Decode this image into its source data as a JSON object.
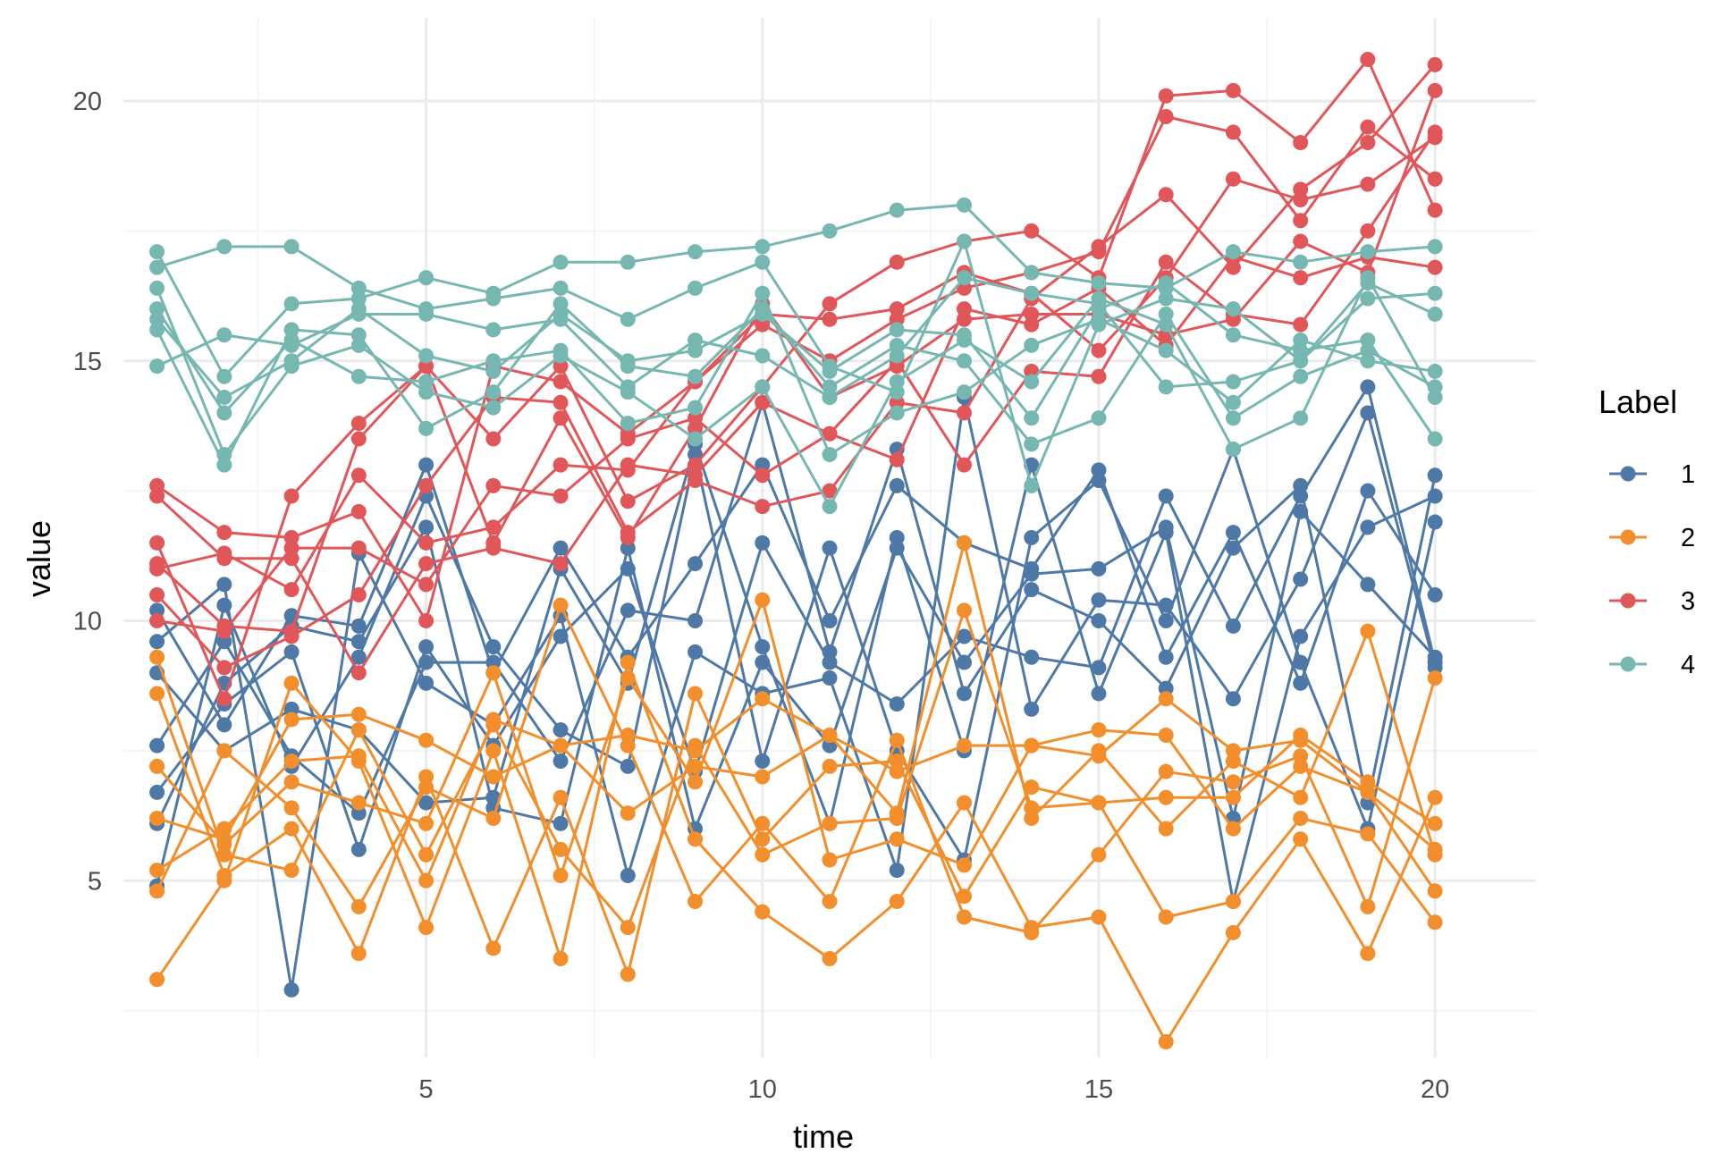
{
  "chart_data": {
    "type": "line",
    "title": "",
    "xlabel": "time",
    "ylabel": "value",
    "xlim": [
      0.5,
      21.5
    ],
    "ylim": [
      1.6,
      21.6
    ],
    "x_ticks": [
      5,
      10,
      15,
      20
    ],
    "y_ticks": [
      5,
      10,
      15,
      20
    ],
    "x_tick_labels": [
      "5",
      "10",
      "15",
      "20"
    ],
    "y_tick_labels": [
      "5",
      "10",
      "15",
      "20"
    ],
    "grid": true,
    "markers": true,
    "legend": {
      "title": "Label",
      "placement": "right",
      "entries": [
        {
          "label": "1",
          "color": "#4e79a7"
        },
        {
          "label": "2",
          "color": "#f28e2b"
        },
        {
          "label": "3",
          "color": "#e15759"
        },
        {
          "label": "4",
          "color": "#76b7b2"
        }
      ]
    },
    "x": [
      1,
      2,
      3,
      4,
      5,
      6,
      7,
      8,
      9,
      10,
      11,
      12,
      13,
      14,
      15,
      16,
      17,
      18,
      19,
      20
    ],
    "series": [
      {
        "name": "1",
        "label": "1",
        "color": "#4e79a7",
        "values": [
          10.2,
          8.0,
          10.1,
          9.9,
          13.0,
          9.0,
          11.4,
          9.3,
          11.1,
          13.0,
          10.0,
          12.6,
          11.5,
          11.0,
          12.9,
          9.3,
          11.7,
          8.8,
          12.5,
          10.5
        ]
      },
      {
        "name": "1",
        "label": "1",
        "color": "#4e79a7",
        "values": [
          6.7,
          8.4,
          9.4,
          5.6,
          9.5,
          7.6,
          9.7,
          11.0,
          7.1,
          11.5,
          9.2,
          8.4,
          9.7,
          9.3,
          9.1,
          12.4,
          9.9,
          12.4,
          14.5,
          9.2
        ]
      },
      {
        "name": "1",
        "label": "1",
        "color": "#4e79a7",
        "values": [
          9.6,
          10.7,
          2.9,
          11.3,
          8.8,
          8.0,
          10.1,
          5.1,
          9.4,
          8.6,
          8.9,
          5.2,
          14.3,
          8.3,
          10.4,
          10.3,
          8.5,
          10.8,
          14.0,
          9.1
        ]
      },
      {
        "name": "1",
        "label": "1",
        "color": "#4e79a7",
        "values": [
          4.9,
          10.3,
          7.2,
          9.3,
          12.4,
          9.5,
          7.9,
          7.2,
          13.2,
          7.3,
          11.4,
          7.5,
          5.4,
          11.6,
          12.7,
          10.0,
          13.3,
          9.2,
          6.0,
          11.9
        ]
      },
      {
        "name": "1",
        "label": "1",
        "color": "#4e79a7",
        "values": [
          9.0,
          7.5,
          8.3,
          7.9,
          6.5,
          6.6,
          11.0,
          8.8,
          13.4,
          9.5,
          6.1,
          11.6,
          7.5,
          13.0,
          8.6,
          11.7,
          4.6,
          9.7,
          11.8,
          12.4
        ]
      },
      {
        "name": "1",
        "label": "1",
        "color": "#4e79a7",
        "values": [
          7.6,
          9.6,
          7.4,
          6.3,
          9.2,
          9.2,
          7.3,
          10.2,
          10.0,
          14.2,
          9.4,
          13.3,
          8.6,
          10.6,
          10.0,
          8.7,
          11.4,
          12.6,
          6.5,
          12.8
        ]
      },
      {
        "name": "1",
        "label": "1",
        "color": "#4e79a7",
        "values": [
          6.1,
          8.8,
          9.9,
          9.6,
          11.8,
          6.4,
          6.1,
          11.4,
          6.0,
          9.2,
          7.6,
          11.4,
          9.2,
          10.9,
          11.0,
          11.8,
          6.2,
          12.1,
          10.7,
          9.3
        ]
      },
      {
        "name": "2",
        "label": "2",
        "color": "#f28e2b",
        "values": [
          3.1,
          5.0,
          8.8,
          7.3,
          4.1,
          7.5,
          3.5,
          9.2,
          5.8,
          4.4,
          3.5,
          4.6,
          6.5,
          4.1,
          4.3,
          1.9,
          4.0,
          5.8,
          3.6,
          6.6
        ]
      },
      {
        "name": "2",
        "label": "2",
        "color": "#f28e2b",
        "values": [
          4.8,
          7.5,
          6.4,
          4.5,
          6.8,
          6.2,
          10.3,
          7.6,
          4.6,
          6.1,
          4.6,
          7.7,
          4.3,
          4.0,
          5.5,
          7.1,
          6.9,
          7.4,
          4.5,
          8.9
        ]
      },
      {
        "name": "2",
        "label": "2",
        "color": "#f28e2b",
        "values": [
          8.6,
          5.1,
          6.0,
          3.6,
          7.0,
          3.7,
          6.6,
          3.2,
          8.6,
          5.8,
          7.2,
          7.3,
          4.7,
          6.8,
          6.5,
          4.3,
          4.6,
          6.2,
          5.9,
          4.2
        ]
      },
      {
        "name": "2",
        "label": "2",
        "color": "#f28e2b",
        "values": [
          6.2,
          5.8,
          8.1,
          8.2,
          7.7,
          7.0,
          7.6,
          6.3,
          7.2,
          7.0,
          7.8,
          6.3,
          11.5,
          6.2,
          7.5,
          6.0,
          7.3,
          6.6,
          9.8,
          5.5
        ]
      },
      {
        "name": "2",
        "label": "2",
        "color": "#f28e2b",
        "values": [
          9.3,
          5.5,
          5.2,
          7.9,
          5.5,
          8.0,
          5.6,
          4.1,
          7.6,
          5.5,
          6.1,
          6.2,
          10.2,
          6.4,
          6.5,
          6.6,
          6.6,
          7.8,
          6.9,
          6.1
        ]
      },
      {
        "name": "2",
        "label": "2",
        "color": "#f28e2b",
        "values": [
          7.2,
          5.7,
          6.9,
          6.5,
          6.1,
          9.0,
          5.1,
          8.9,
          6.9,
          10.4,
          5.4,
          5.8,
          5.3,
          7.6,
          7.9,
          7.8,
          6.0,
          7.2,
          6.7,
          5.6
        ]
      },
      {
        "name": "2",
        "label": "2",
        "color": "#f28e2b",
        "values": [
          5.2,
          6.0,
          7.3,
          7.4,
          5.0,
          8.1,
          7.6,
          7.8,
          7.5,
          8.5,
          7.8,
          7.1,
          7.6,
          7.6,
          7.4,
          8.5,
          7.5,
          7.7,
          6.7,
          4.8
        ]
      },
      {
        "name": "3",
        "label": "3",
        "color": "#e15759",
        "values": [
          11.5,
          8.5,
          12.4,
          13.8,
          14.9,
          13.5,
          14.9,
          12.3,
          13.0,
          14.5,
          16.1,
          16.9,
          17.3,
          17.5,
          16.6,
          20.1,
          20.2,
          19.2,
          20.8,
          17.9
        ]
      },
      {
        "name": "3",
        "label": "3",
        "color": "#e15759",
        "values": [
          12.6,
          11.7,
          11.6,
          12.1,
          10.0,
          14.9,
          14.6,
          13.6,
          14.6,
          15.7,
          15.0,
          15.8,
          16.4,
          16.7,
          17.1,
          19.7,
          19.4,
          17.7,
          19.5,
          18.5
        ]
      },
      {
        "name": "3",
        "label": "3",
        "color": "#e15759",
        "values": [
          10.5,
          9.1,
          9.7,
          10.5,
          12.6,
          14.3,
          14.2,
          11.7,
          12.7,
          12.2,
          12.5,
          14.2,
          14.0,
          16.2,
          17.2,
          18.2,
          16.8,
          18.3,
          19.2,
          20.7
        ]
      },
      {
        "name": "3",
        "label": "3",
        "color": "#e15759",
        "values": [
          11.0,
          11.3,
          10.6,
          12.8,
          11.5,
          11.8,
          13.0,
          12.9,
          14.6,
          15.9,
          15.8,
          16.0,
          16.7,
          16.3,
          15.2,
          16.6,
          18.5,
          18.1,
          18.4,
          19.3
        ]
      },
      {
        "name": "3",
        "label": "3",
        "color": "#e15759",
        "values": [
          10.0,
          9.8,
          11.4,
          11.4,
          10.7,
          12.6,
          12.4,
          13.5,
          13.9,
          12.8,
          13.6,
          13.1,
          16.0,
          15.7,
          16.4,
          15.3,
          17.0,
          16.6,
          17.0,
          16.8
        ]
      },
      {
        "name": "3",
        "label": "3",
        "color": "#e15759",
        "values": [
          12.4,
          11.2,
          11.2,
          9.0,
          11.1,
          11.4,
          11.1,
          13.0,
          12.8,
          14.2,
          13.6,
          15.0,
          13.0,
          14.8,
          14.7,
          16.9,
          15.9,
          15.7,
          17.5,
          19.4
        ]
      },
      {
        "name": "3",
        "label": "3",
        "color": "#e15759",
        "values": [
          11.1,
          9.9,
          9.8,
          13.5,
          14.9,
          11.5,
          13.9,
          11.6,
          13.7,
          16.1,
          14.3,
          14.9,
          15.8,
          15.9,
          15.9,
          15.5,
          15.8,
          17.3,
          16.7,
          20.2
        ]
      },
      {
        "name": "4",
        "label": "4",
        "color": "#76b7b2",
        "values": [
          17.1,
          14.7,
          16.1,
          16.2,
          16.6,
          16.3,
          16.9,
          16.9,
          17.1,
          17.2,
          17.5,
          17.9,
          18.0,
          16.7,
          16.5,
          16.4,
          17.1,
          16.9,
          17.1,
          17.2
        ]
      },
      {
        "name": "4",
        "label": "4",
        "color": "#76b7b2",
        "values": [
          16.8,
          17.2,
          17.2,
          16.4,
          16.0,
          16.2,
          16.4,
          15.8,
          16.4,
          16.9,
          14.9,
          14.4,
          17.3,
          12.6,
          15.7,
          16.2,
          16.0,
          15.0,
          16.5,
          15.9
        ]
      },
      {
        "name": "4",
        "label": "4",
        "color": "#76b7b2",
        "values": [
          14.9,
          15.5,
          15.3,
          15.9,
          15.9,
          15.6,
          15.8,
          14.5,
          15.4,
          15.1,
          14.3,
          15.1,
          16.6,
          16.3,
          16.1,
          14.5,
          14.6,
          15.0,
          16.2,
          16.3
        ]
      },
      {
        "name": "4",
        "label": "4",
        "color": "#76b7b2",
        "values": [
          15.8,
          14.3,
          15.0,
          16.0,
          15.1,
          14.8,
          15.9,
          15.0,
          15.2,
          15.9,
          14.8,
          15.6,
          15.5,
          13.9,
          16.0,
          16.5,
          15.5,
          15.2,
          15.4,
          13.5
        ]
      },
      {
        "name": "4",
        "label": "4",
        "color": "#76b7b2",
        "values": [
          16.0,
          14.0,
          15.4,
          14.7,
          14.6,
          15.0,
          15.2,
          13.8,
          14.1,
          16.3,
          13.2,
          14.0,
          14.4,
          15.3,
          15.8,
          15.2,
          14.2,
          15.4,
          15.0,
          14.8
        ]
      },
      {
        "name": "4",
        "label": "4",
        "color": "#76b7b2",
        "values": [
          16.4,
          13.2,
          14.9,
          15.3,
          14.4,
          14.1,
          15.1,
          14.4,
          13.5,
          14.5,
          12.2,
          14.6,
          15.4,
          14.6,
          16.2,
          15.7,
          13.3,
          13.9,
          16.6,
          14.3
        ]
      },
      {
        "name": "4",
        "label": "4",
        "color": "#76b7b2",
        "values": [
          15.6,
          13.0,
          15.6,
          15.5,
          13.7,
          14.4,
          16.1,
          14.9,
          14.7,
          16.0,
          14.5,
          15.3,
          15.0,
          13.4,
          13.9,
          15.9,
          13.9,
          14.7,
          15.2,
          14.5
        ]
      }
    ]
  }
}
